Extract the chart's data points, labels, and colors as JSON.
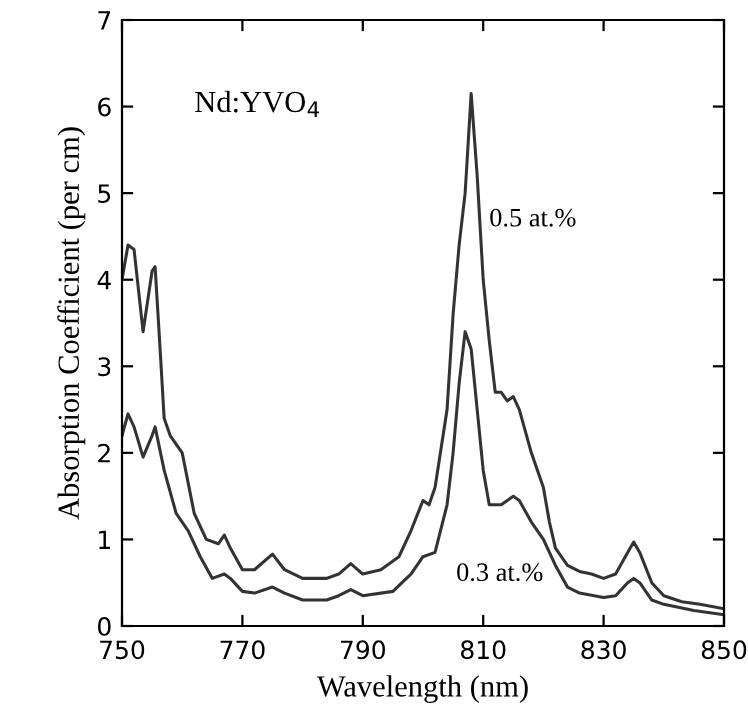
{
  "chart_data": {
    "type": "line",
    "xlabel": "Wavelength (nm)",
    "ylabel": "Absorption Coefficient (per cm)",
    "xlim": [
      750,
      850
    ],
    "xticks": [
      750,
      770,
      790,
      810,
      830,
      850
    ],
    "ylim": [
      0,
      7
    ],
    "yticks": [
      0,
      1,
      2,
      3,
      4,
      5,
      6,
      7
    ],
    "grid": false,
    "legend": false,
    "marker": "none",
    "line_style": "solid",
    "annotations": [
      "Nd:YVO$_{4}$",
      "0.5 at.%",
      "0.3 at.%"
    ],
    "series": [
      {
        "color": "#333333",
        "x": [
          750,
          751,
          752,
          753.5,
          755,
          755.5,
          756.5,
          757,
          758,
          760,
          762,
          764,
          766,
          767,
          768,
          770,
          772,
          775,
          777,
          780,
          784,
          786,
          788,
          790,
          793,
          796,
          798,
          800,
          801,
          802,
          804,
          805,
          806,
          807,
          808,
          809,
          810,
          811,
          812,
          813,
          814,
          815,
          816,
          818,
          820,
          821,
          822,
          824,
          826,
          828,
          830,
          832,
          834,
          835,
          836,
          838,
          840,
          843,
          846,
          850
        ],
        "values": [
          4.0,
          4.4,
          4.35,
          3.4,
          4.1,
          4.15,
          3.0,
          2.4,
          2.2,
          2.0,
          1.3,
          1.0,
          0.95,
          1.05,
          0.9,
          0.65,
          0.65,
          0.83,
          0.65,
          0.55,
          0.55,
          0.6,
          0.72,
          0.6,
          0.65,
          0.8,
          1.1,
          1.45,
          1.4,
          1.6,
          2.5,
          3.6,
          4.4,
          5.0,
          6.15,
          5.2,
          4.0,
          3.3,
          2.7,
          2.7,
          2.6,
          2.65,
          2.5,
          2.0,
          1.6,
          1.2,
          0.9,
          0.7,
          0.63,
          0.6,
          0.55,
          0.6,
          0.85,
          0.97,
          0.85,
          0.5,
          0.35,
          0.28,
          0.25,
          0.2
        ]
      },
      {
        "color": "#333333",
        "x": [
          750,
          751,
          752,
          753.5,
          755,
          755.5,
          757,
          759,
          761,
          763,
          765,
          767,
          768,
          770,
          772,
          775,
          777,
          780,
          784,
          786,
          788,
          790,
          795,
          798,
          800,
          802,
          804,
          805,
          806,
          807,
          808,
          809,
          810,
          811,
          813,
          815,
          816,
          818,
          820,
          822,
          824,
          826,
          830,
          832,
          834,
          835,
          836,
          838,
          840,
          845,
          850
        ],
        "values": [
          2.2,
          2.45,
          2.3,
          1.95,
          2.2,
          2.3,
          1.8,
          1.3,
          1.1,
          0.8,
          0.55,
          0.6,
          0.55,
          0.4,
          0.38,
          0.45,
          0.38,
          0.3,
          0.3,
          0.35,
          0.42,
          0.35,
          0.4,
          0.6,
          0.8,
          0.85,
          1.4,
          2.0,
          2.8,
          3.4,
          3.2,
          2.5,
          1.8,
          1.4,
          1.4,
          1.5,
          1.45,
          1.2,
          1.0,
          0.7,
          0.45,
          0.38,
          0.33,
          0.35,
          0.5,
          0.55,
          0.5,
          0.3,
          0.25,
          0.18,
          0.13
        ]
      }
    ]
  }
}
